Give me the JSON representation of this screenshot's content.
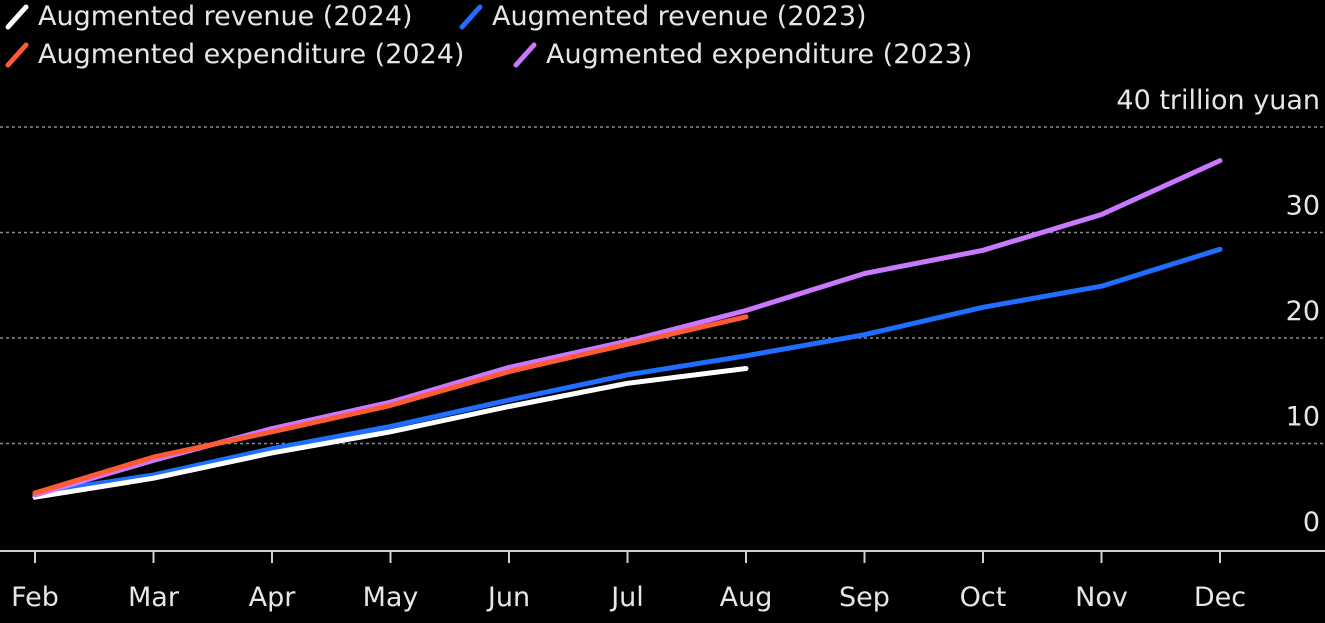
{
  "chart_data": {
    "type": "line",
    "unit_label": "40 trillion yuan",
    "categories": [
      "Feb",
      "Mar",
      "Apr",
      "May",
      "Jun",
      "Jul",
      "Aug",
      "Sep",
      "Oct",
      "Nov",
      "Dec"
    ],
    "y_ticks": [
      "0",
      "10",
      "20",
      "30"
    ],
    "ylim": [
      0,
      40
    ],
    "grid": true,
    "legend_position": "top-left",
    "series": [
      {
        "name": "Augmented revenue (2024)",
        "color": "#ffffff",
        "values": [
          5.1,
          6.9,
          9.3,
          11.3,
          13.7,
          15.9,
          17.3,
          null,
          null,
          null,
          null
        ]
      },
      {
        "name": "Augmented revenue (2023)",
        "color": "#1f6eff",
        "values": [
          5.5,
          7.2,
          9.7,
          11.8,
          14.3,
          16.7,
          18.5,
          20.5,
          23.1,
          25.1,
          28.6
        ]
      },
      {
        "name": "Augmented expenditure (2024)",
        "color": "#ff5a36",
        "values": [
          5.5,
          8.9,
          11.3,
          13.8,
          17.0,
          19.6,
          22.2,
          null,
          null,
          null,
          null
        ]
      },
      {
        "name": "Augmented expenditure (2023)",
        "color": "#c879ff",
        "values": [
          5.3,
          8.6,
          11.6,
          14.1,
          17.4,
          19.9,
          22.8,
          26.3,
          28.5,
          31.9,
          37.0
        ]
      }
    ]
  }
}
